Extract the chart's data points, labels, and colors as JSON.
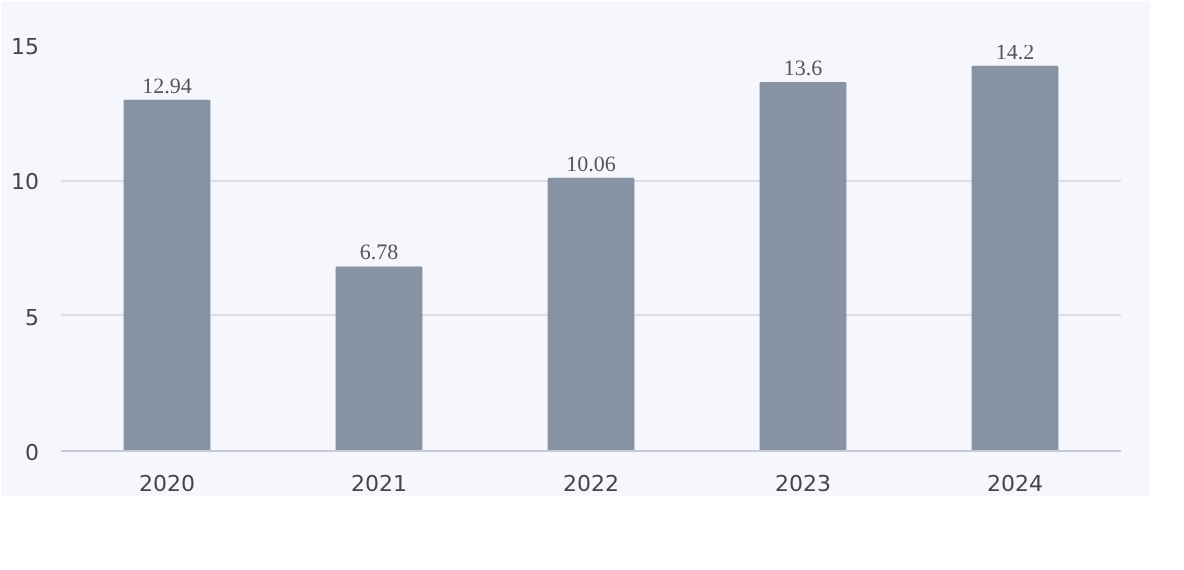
{
  "chart_data": {
    "type": "bar",
    "categories": [
      "2020",
      "2021",
      "2022",
      "2023",
      "2024"
    ],
    "values": [
      12.94,
      6.78,
      10.06,
      13.6,
      14.2
    ],
    "color": "#8793a3",
    "ylim": [
      0,
      15
    ],
    "yticks": [
      0,
      5,
      10,
      15
    ],
    "grid": "y",
    "data_labels": true
  }
}
